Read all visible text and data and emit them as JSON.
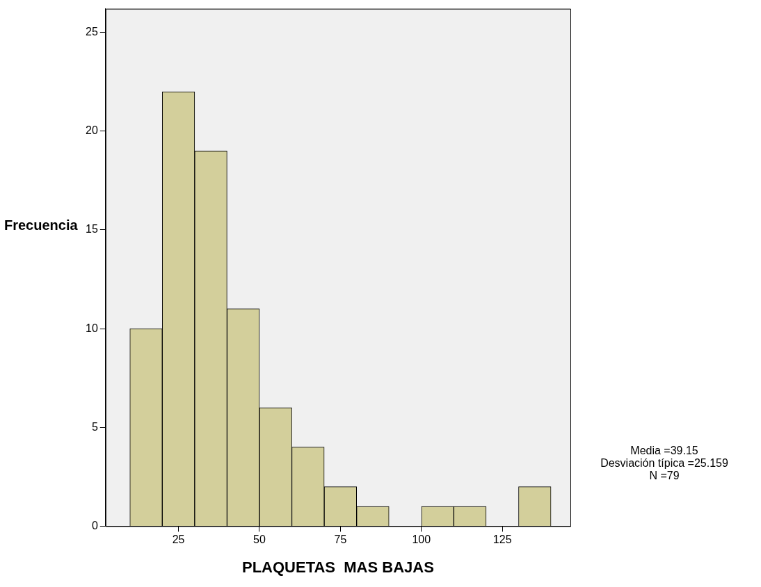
{
  "chart_data": {
    "type": "histogram",
    "xlabel": "PLAQUETAS  MAS BAJAS",
    "ylabel": "Frecuencia",
    "bins": [
      10,
      20,
      30,
      40,
      50,
      60,
      70,
      80,
      90,
      100,
      110,
      120,
      130,
      140
    ],
    "values": [
      10,
      22,
      19,
      11,
      6,
      4,
      2,
      1,
      0,
      1,
      1,
      0,
      2
    ],
    "color": "#d3cf9b",
    "xlim": [
      2.5,
      146
    ],
    "xticks": [
      25,
      50,
      75,
      100,
      125
    ],
    "ylim": [
      0,
      26.2
    ],
    "yticks": [
      0,
      5,
      10,
      15,
      20,
      25
    ],
    "grid": false,
    "legend": false,
    "annotations": [
      "Media =39.15",
      "Desviación típica =25.159",
      "N =79"
    ]
  }
}
